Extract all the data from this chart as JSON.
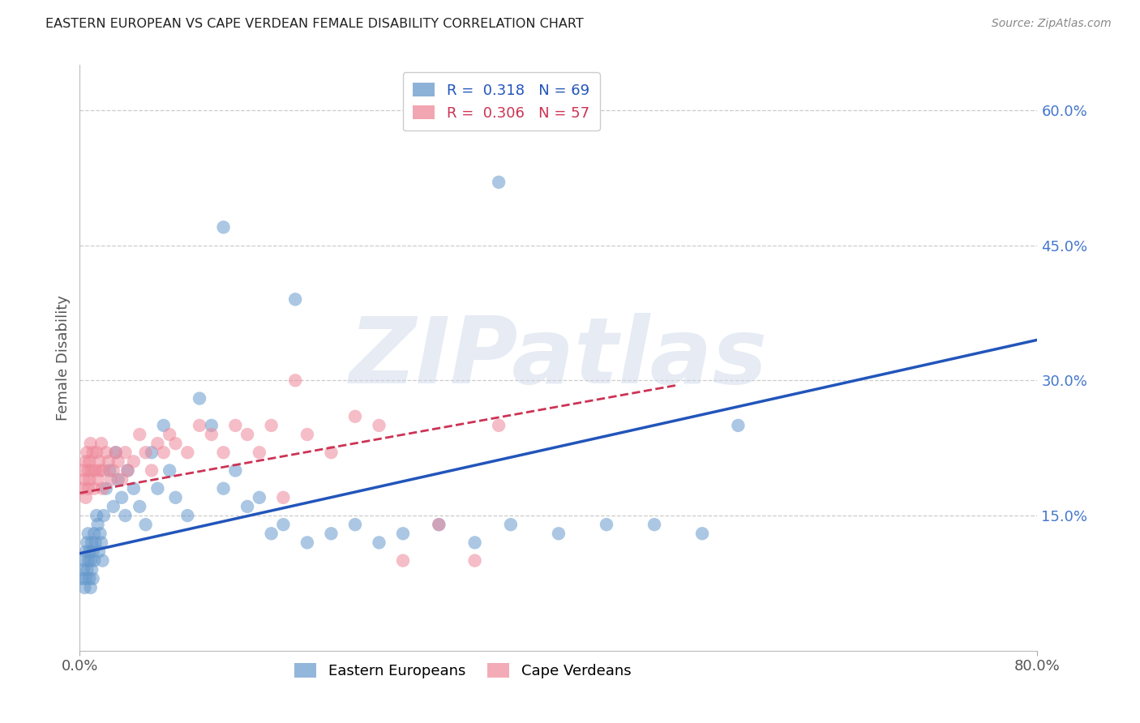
{
  "title": "EASTERN EUROPEAN VS CAPE VERDEAN FEMALE DISABILITY CORRELATION CHART",
  "source": "Source: ZipAtlas.com",
  "ylabel": "Female Disability",
  "xlim": [
    0.0,
    0.8
  ],
  "ylim": [
    0.0,
    0.65
  ],
  "watermark": "ZIPatlas",
  "blue_color": "#6699cc",
  "pink_color": "#ee8899",
  "blue_trend_color": "#2255bb",
  "pink_trend_color": "#cc3355",
  "blue_R": "0.318",
  "blue_N": "69",
  "pink_R": "0.306",
  "pink_N": "57",
  "blue_trend_x": [
    0.0,
    0.8
  ],
  "blue_trend_y": [
    0.108,
    0.345
  ],
  "pink_trend_x": [
    0.0,
    0.5
  ],
  "pink_trend_y": [
    0.175,
    0.295
  ],
  "yticks": [
    0.15,
    0.3,
    0.45,
    0.6
  ],
  "yticklabels": [
    "15.0%",
    "30.0%",
    "45.0%",
    "60.0%"
  ],
  "blue_x": [
    0.002,
    0.003,
    0.004,
    0.004,
    0.005,
    0.005,
    0.006,
    0.006,
    0.007,
    0.007,
    0.008,
    0.008,
    0.009,
    0.009,
    0.01,
    0.01,
    0.011,
    0.011,
    0.012,
    0.012,
    0.013,
    0.014,
    0.015,
    0.016,
    0.017,
    0.018,
    0.019,
    0.02,
    0.022,
    0.025,
    0.028,
    0.03,
    0.032,
    0.035,
    0.038,
    0.04,
    0.045,
    0.05,
    0.055,
    0.06,
    0.065,
    0.07,
    0.075,
    0.08,
    0.09,
    0.1,
    0.11,
    0.12,
    0.13,
    0.14,
    0.15,
    0.16,
    0.17,
    0.19,
    0.21,
    0.23,
    0.25,
    0.27,
    0.3,
    0.33,
    0.36,
    0.4,
    0.44,
    0.48,
    0.52,
    0.55,
    0.12,
    0.18,
    0.35
  ],
  "blue_y": [
    0.08,
    0.09,
    0.1,
    0.07,
    0.08,
    0.11,
    0.09,
    0.12,
    0.1,
    0.13,
    0.11,
    0.08,
    0.1,
    0.07,
    0.09,
    0.12,
    0.11,
    0.08,
    0.1,
    0.13,
    0.12,
    0.15,
    0.14,
    0.11,
    0.13,
    0.12,
    0.1,
    0.15,
    0.18,
    0.2,
    0.16,
    0.22,
    0.19,
    0.17,
    0.15,
    0.2,
    0.18,
    0.16,
    0.14,
    0.22,
    0.18,
    0.25,
    0.2,
    0.17,
    0.15,
    0.28,
    0.25,
    0.18,
    0.2,
    0.16,
    0.17,
    0.13,
    0.14,
    0.12,
    0.13,
    0.14,
    0.12,
    0.13,
    0.14,
    0.12,
    0.14,
    0.13,
    0.14,
    0.14,
    0.13,
    0.25,
    0.47,
    0.39,
    0.52
  ],
  "pink_x": [
    0.002,
    0.003,
    0.004,
    0.005,
    0.005,
    0.006,
    0.007,
    0.007,
    0.008,
    0.008,
    0.009,
    0.01,
    0.011,
    0.012,
    0.013,
    0.014,
    0.015,
    0.016,
    0.017,
    0.018,
    0.019,
    0.02,
    0.022,
    0.024,
    0.026,
    0.028,
    0.03,
    0.032,
    0.035,
    0.038,
    0.04,
    0.045,
    0.05,
    0.055,
    0.06,
    0.065,
    0.07,
    0.075,
    0.08,
    0.09,
    0.1,
    0.11,
    0.12,
    0.13,
    0.14,
    0.15,
    0.16,
    0.17,
    0.19,
    0.21,
    0.23,
    0.25,
    0.27,
    0.3,
    0.33,
    0.35,
    0.18
  ],
  "pink_y": [
    0.18,
    0.2,
    0.19,
    0.21,
    0.17,
    0.22,
    0.2,
    0.18,
    0.21,
    0.19,
    0.23,
    0.2,
    0.22,
    0.18,
    0.2,
    0.22,
    0.19,
    0.21,
    0.2,
    0.23,
    0.18,
    0.2,
    0.22,
    0.21,
    0.19,
    0.2,
    0.22,
    0.21,
    0.19,
    0.22,
    0.2,
    0.21,
    0.24,
    0.22,
    0.2,
    0.23,
    0.22,
    0.24,
    0.23,
    0.22,
    0.25,
    0.24,
    0.22,
    0.25,
    0.24,
    0.22,
    0.25,
    0.17,
    0.24,
    0.22,
    0.26,
    0.25,
    0.1,
    0.14,
    0.1,
    0.25,
    0.3
  ]
}
